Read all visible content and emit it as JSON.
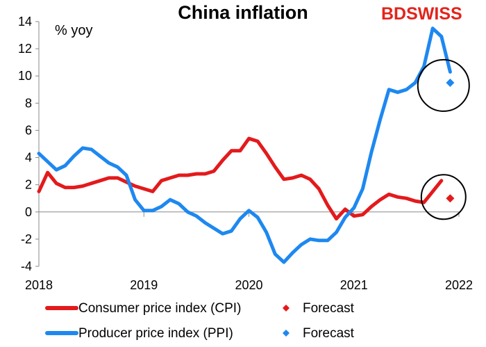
{
  "chart_data": {
    "type": "line",
    "title": "China inflation",
    "ylabel": "% yoy",
    "ylim": [
      -4,
      14
    ],
    "yticks": [
      -4,
      -2,
      0,
      2,
      4,
      6,
      8,
      10,
      12,
      14
    ],
    "xlim": [
      2018,
      2022
    ],
    "xticks": [
      "2018",
      "2019",
      "2020",
      "2021",
      "2022"
    ],
    "series": [
      {
        "name": "Consumer price index (CPI)",
        "color": "#e31a1c",
        "start": "2018-01",
        "values": [
          1.5,
          2.9,
          2.1,
          1.8,
          1.8,
          1.9,
          2.1,
          2.3,
          2.5,
          2.5,
          2.2,
          1.9,
          1.7,
          1.5,
          2.3,
          2.5,
          2.7,
          2.7,
          2.8,
          2.8,
          3.0,
          3.8,
          4.5,
          4.5,
          5.4,
          5.2,
          4.3,
          3.3,
          2.4,
          2.5,
          2.7,
          2.4,
          1.7,
          0.5,
          -0.5,
          0.2,
          -0.3,
          -0.2,
          0.4,
          0.9,
          1.3,
          1.1,
          1.0,
          0.8,
          0.7,
          1.5,
          2.3
        ]
      },
      {
        "name": "Producer price index (PPI)",
        "color": "#1e88f0",
        "start": "2018-01",
        "values": [
          4.3,
          3.7,
          3.1,
          3.4,
          4.1,
          4.7,
          4.6,
          4.1,
          3.6,
          3.3,
          2.7,
          0.9,
          0.1,
          0.1,
          0.4,
          0.9,
          0.6,
          0.0,
          -0.3,
          -0.8,
          -1.2,
          -1.6,
          -1.4,
          -0.5,
          0.1,
          -0.4,
          -1.5,
          -3.1,
          -3.7,
          -3.0,
          -2.4,
          -2.0,
          -2.1,
          -2.1,
          -1.5,
          -0.4,
          0.3,
          1.7,
          4.4,
          6.8,
          9.0,
          8.8,
          9.0,
          9.5,
          10.7,
          13.5,
          12.9,
          10.3
        ]
      }
    ],
    "forecasts": [
      {
        "name": "Forecast",
        "series": "Consumer price index (CPI)",
        "color": "#e31a1c",
        "x": "2021-12",
        "value": 1.0
      },
      {
        "name": "Forecast",
        "series": "Producer price index (PPI)",
        "color": "#1e88f0",
        "x": "2021-12",
        "value": 9.5
      }
    ],
    "legend": [
      {
        "label": "Consumer price index (CPI)",
        "type": "line",
        "color": "#e31a1c"
      },
      {
        "label": "Forecast",
        "type": "marker",
        "color": "#e31a1c"
      },
      {
        "label": "Producer price index (PPI)",
        "type": "line",
        "color": "#1e88f0"
      },
      {
        "label": "Forecast",
        "type": "marker",
        "color": "#1e88f0"
      }
    ],
    "legend_position": "bottom",
    "annotations": [
      "circle around PPI forecast",
      "circle around CPI forecast"
    ]
  },
  "brand": {
    "bd": "BD",
    "swiss": "SWISS",
    "color": "#e3241b"
  }
}
